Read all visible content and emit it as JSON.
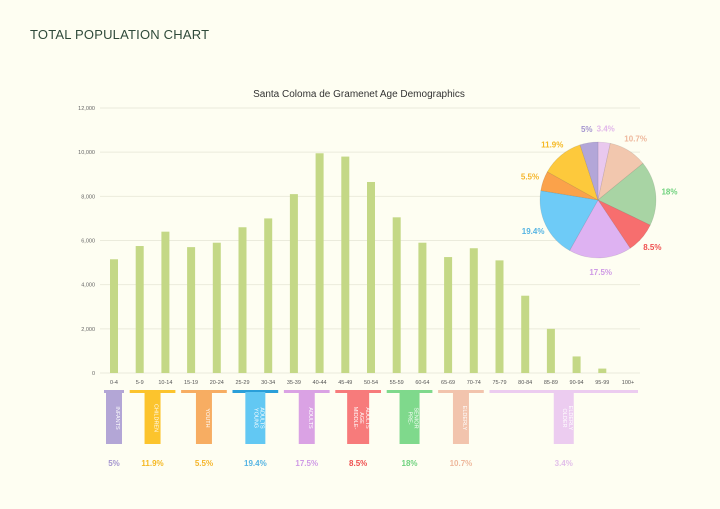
{
  "page_title": "TOTAL POPULATION CHART",
  "chart_data": [
    {
      "type": "bar",
      "title": "Santa Coloma de Gramenet Age Demographics",
      "xlabel": "",
      "ylabel": "",
      "ylim": [
        0,
        12000
      ],
      "yticks": [
        "0",
        "2,000",
        "4,000",
        "6,000",
        "8,000",
        "10,000",
        "12,000"
      ],
      "ytick_values": [
        0,
        2000,
        4000,
        6000,
        8000,
        10000,
        12000
      ],
      "grid": true,
      "bar_color": "#c4d886",
      "categories": [
        "0-4",
        "5-9",
        "10-14",
        "15-19",
        "20-24",
        "25-29",
        "30-34",
        "35-39",
        "40-44",
        "45-49",
        "50-54",
        "55-59",
        "60-64",
        "65-69",
        "70-74",
        "75-79",
        "80-84",
        "85-89",
        "90-94",
        "95-99",
        "100+"
      ],
      "values": [
        5150,
        5750,
        6400,
        5700,
        5900,
        6600,
        7000,
        8100,
        9950,
        9800,
        8650,
        7050,
        5900,
        5250,
        5650,
        5100,
        3500,
        2000,
        750,
        200,
        0
      ]
    },
    {
      "type": "pie",
      "slices": [
        {
          "label": "3.4%",
          "value": 3.4,
          "color": "#e9c8ee",
          "text_color": "#e2b8ea"
        },
        {
          "label": "10.7%",
          "value": 10.7,
          "color": "#f2c7ae",
          "text_color": "#eeb89c"
        },
        {
          "label": "18%",
          "value": 18,
          "color": "#a8d4a4",
          "text_color": "#6fd27e"
        },
        {
          "label": "8.5%",
          "value": 8.5,
          "color": "#f76e6e",
          "text_color": "#ef4f4f"
        },
        {
          "label": "17.5%",
          "value": 17.5,
          "color": "#deb2f2",
          "text_color": "#cf9ae6"
        },
        {
          "label": "19.4%",
          "value": 19.4,
          "color": "#6ecbf7",
          "text_color": "#55b4e3"
        },
        {
          "label": "5.5%",
          "value": 5.5,
          "color": "#fba24a",
          "text_color": "#f5b52a"
        },
        {
          "label": "11.9%",
          "value": 11.9,
          "color": "#fdc93c",
          "text_color": "#f5b823"
        },
        {
          "label": "5%",
          "value": 5,
          "color": "#b3a6d8",
          "text_color": "#a495cf"
        }
      ]
    }
  ],
  "groups": [
    {
      "label": "INFANTS",
      "lines": [
        "INFANTS"
      ],
      "range": [
        "0-4",
        "0-4"
      ],
      "percent": "5%",
      "color": "#b3a6d6",
      "text_color": "#a495cf"
    },
    {
      "label": "CHILDREN",
      "lines": [
        "CHILDREN"
      ],
      "range": [
        "5-9",
        "10-14"
      ],
      "percent": "11.9%",
      "color": "#fcc42d",
      "text_color": "#f5b823"
    },
    {
      "label": "YOUTH",
      "lines": [
        "YOUTH"
      ],
      "range": [
        "15-19",
        "20-24"
      ],
      "percent": "5.5%",
      "color": "#f7ad62",
      "text_color": "#f5b52a"
    },
    {
      "label": "YOUNG ADULTS",
      "lines": [
        "YOUNG",
        "ADULTS"
      ],
      "range": [
        "25-29",
        "30-34"
      ],
      "percent": "19.4%",
      "color": "#62c8f3",
      "bar_color": "#2a9fd9",
      "text_color": "#55b4e3"
    },
    {
      "label": "ADULTS",
      "lines": [
        "ADULTS"
      ],
      "range": [
        "35-39",
        "40-44"
      ],
      "percent": "17.5%",
      "color": "#daa2e4",
      "text_color": "#cf9ae6"
    },
    {
      "label": "MIDDLE-AGE ADULTS",
      "lines": [
        "MIDDLE-",
        "AGE",
        "ADULTS"
      ],
      "range": [
        "45-49",
        "50-54"
      ],
      "percent": "8.5%",
      "color": "#f77b7b",
      "text_color": "#ef4f4f"
    },
    {
      "label": "PRE-SENIOR",
      "lines": [
        "PRE-",
        "SENIOR"
      ],
      "range": [
        "55-59",
        "60-64"
      ],
      "percent": "18%",
      "color": "#7fd98c",
      "text_color": "#6fd27e"
    },
    {
      "label": "ELDERLY",
      "lines": [
        "ELDERLY"
      ],
      "range": [
        "65-69",
        "70-74"
      ],
      "percent": "10.7%",
      "color": "#f2c4ad",
      "text_color": "#eeb89c"
    },
    {
      "label": "OLDER ELDERLY",
      "lines": [
        "OLDER",
        "ELDERLY"
      ],
      "range": [
        "75-79",
        "100+"
      ],
      "percent": "3.4%",
      "color": "#ecccf0",
      "text_color": "#e2c0ea"
    }
  ]
}
